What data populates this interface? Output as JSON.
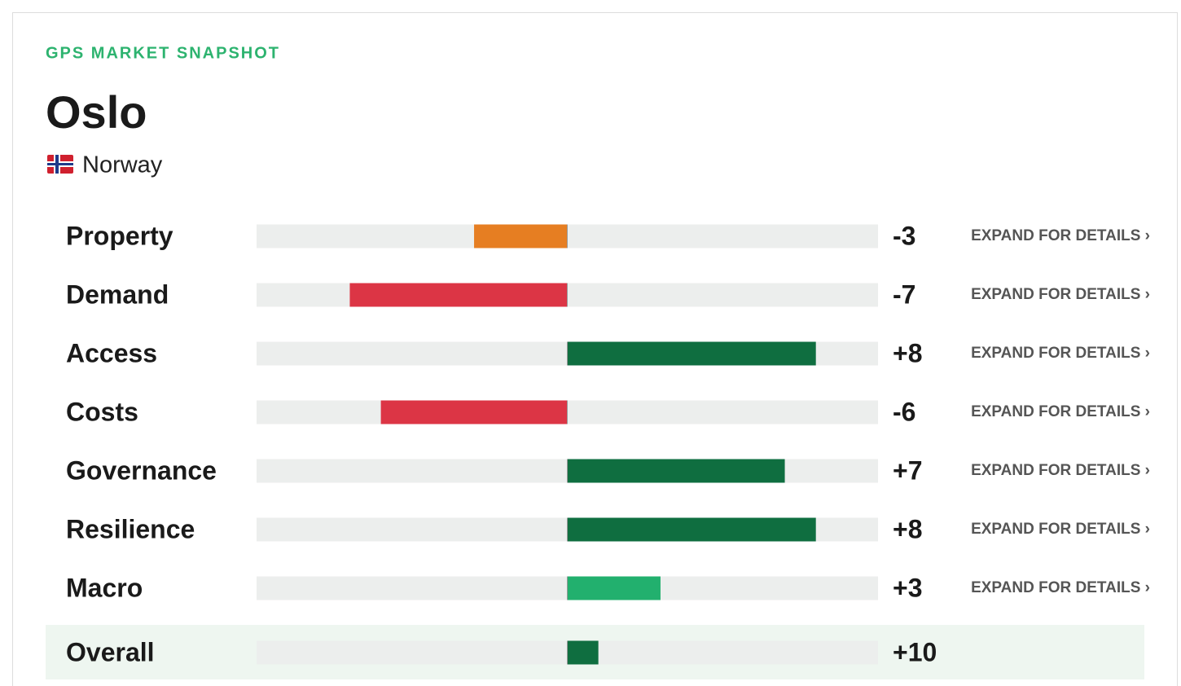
{
  "header": {
    "kicker": "GPS MARKET SNAPSHOT",
    "title": "Oslo",
    "country": "Norway"
  },
  "chart_data": {
    "type": "bar",
    "orientation": "horizontal",
    "categories": [
      "Property",
      "Demand",
      "Access",
      "Costs",
      "Governance",
      "Resilience",
      "Macro"
    ],
    "values": [
      -3,
      -7,
      8,
      -6,
      7,
      8,
      3
    ],
    "value_labels": [
      "-3",
      "-7",
      "+8",
      "-6",
      "+7",
      "+8",
      "+3"
    ],
    "colors": [
      "#e67e22",
      "#dc3545",
      "#0f6e40",
      "#dc3545",
      "#0f6e40",
      "#0f6e40",
      "#22b06e"
    ],
    "xlim": [
      -10,
      10
    ],
    "row_action": "EXPAND FOR DETAILS ›",
    "total": {
      "label": "Overall",
      "value": 10,
      "value_label": "+10",
      "xlim": [
        -100,
        100
      ],
      "color": "#0f6e40"
    }
  }
}
